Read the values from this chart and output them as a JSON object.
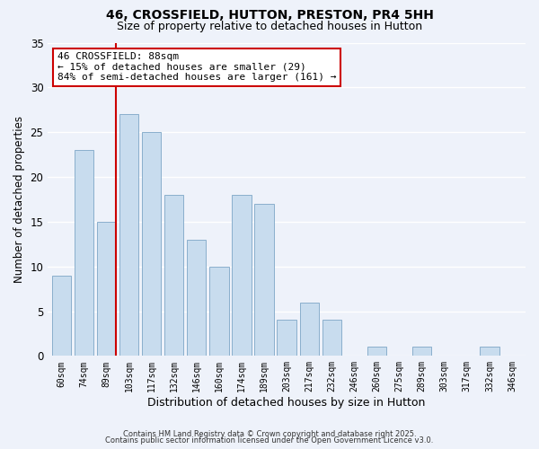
{
  "title": "46, CROSSFIELD, HUTTON, PRESTON, PR4 5HH",
  "subtitle": "Size of property relative to detached houses in Hutton",
  "xlabel": "Distribution of detached houses by size in Hutton",
  "ylabel": "Number of detached properties",
  "bar_color": "#c8dcee",
  "bar_edge_color": "#8aafcc",
  "background_color": "#eef2fa",
  "grid_color": "#ffffff",
  "marker_line_color": "#cc0000",
  "annotation_title": "46 CROSSFIELD: 88sqm",
  "annotation_line1": "← 15% of detached houses are smaller (29)",
  "annotation_line2": "84% of semi-detached houses are larger (161) →",
  "categories": [
    "60sqm",
    "74sqm",
    "89sqm",
    "103sqm",
    "117sqm",
    "132sqm",
    "146sqm",
    "160sqm",
    "174sqm",
    "189sqm",
    "203sqm",
    "217sqm",
    "232sqm",
    "246sqm",
    "260sqm",
    "275sqm",
    "289sqm",
    "303sqm",
    "317sqm",
    "332sqm",
    "346sqm"
  ],
  "values": [
    9,
    23,
    15,
    27,
    25,
    18,
    13,
    10,
    18,
    17,
    4,
    6,
    4,
    0,
    1,
    0,
    1,
    0,
    0,
    1,
    0
  ],
  "ylim": [
    0,
    35
  ],
  "yticks": [
    0,
    5,
    10,
    15,
    20,
    25,
    30,
    35
  ],
  "footnote1": "Contains HM Land Registry data © Crown copyright and database right 2025.",
  "footnote2": "Contains public sector information licensed under the Open Government Licence v3.0."
}
